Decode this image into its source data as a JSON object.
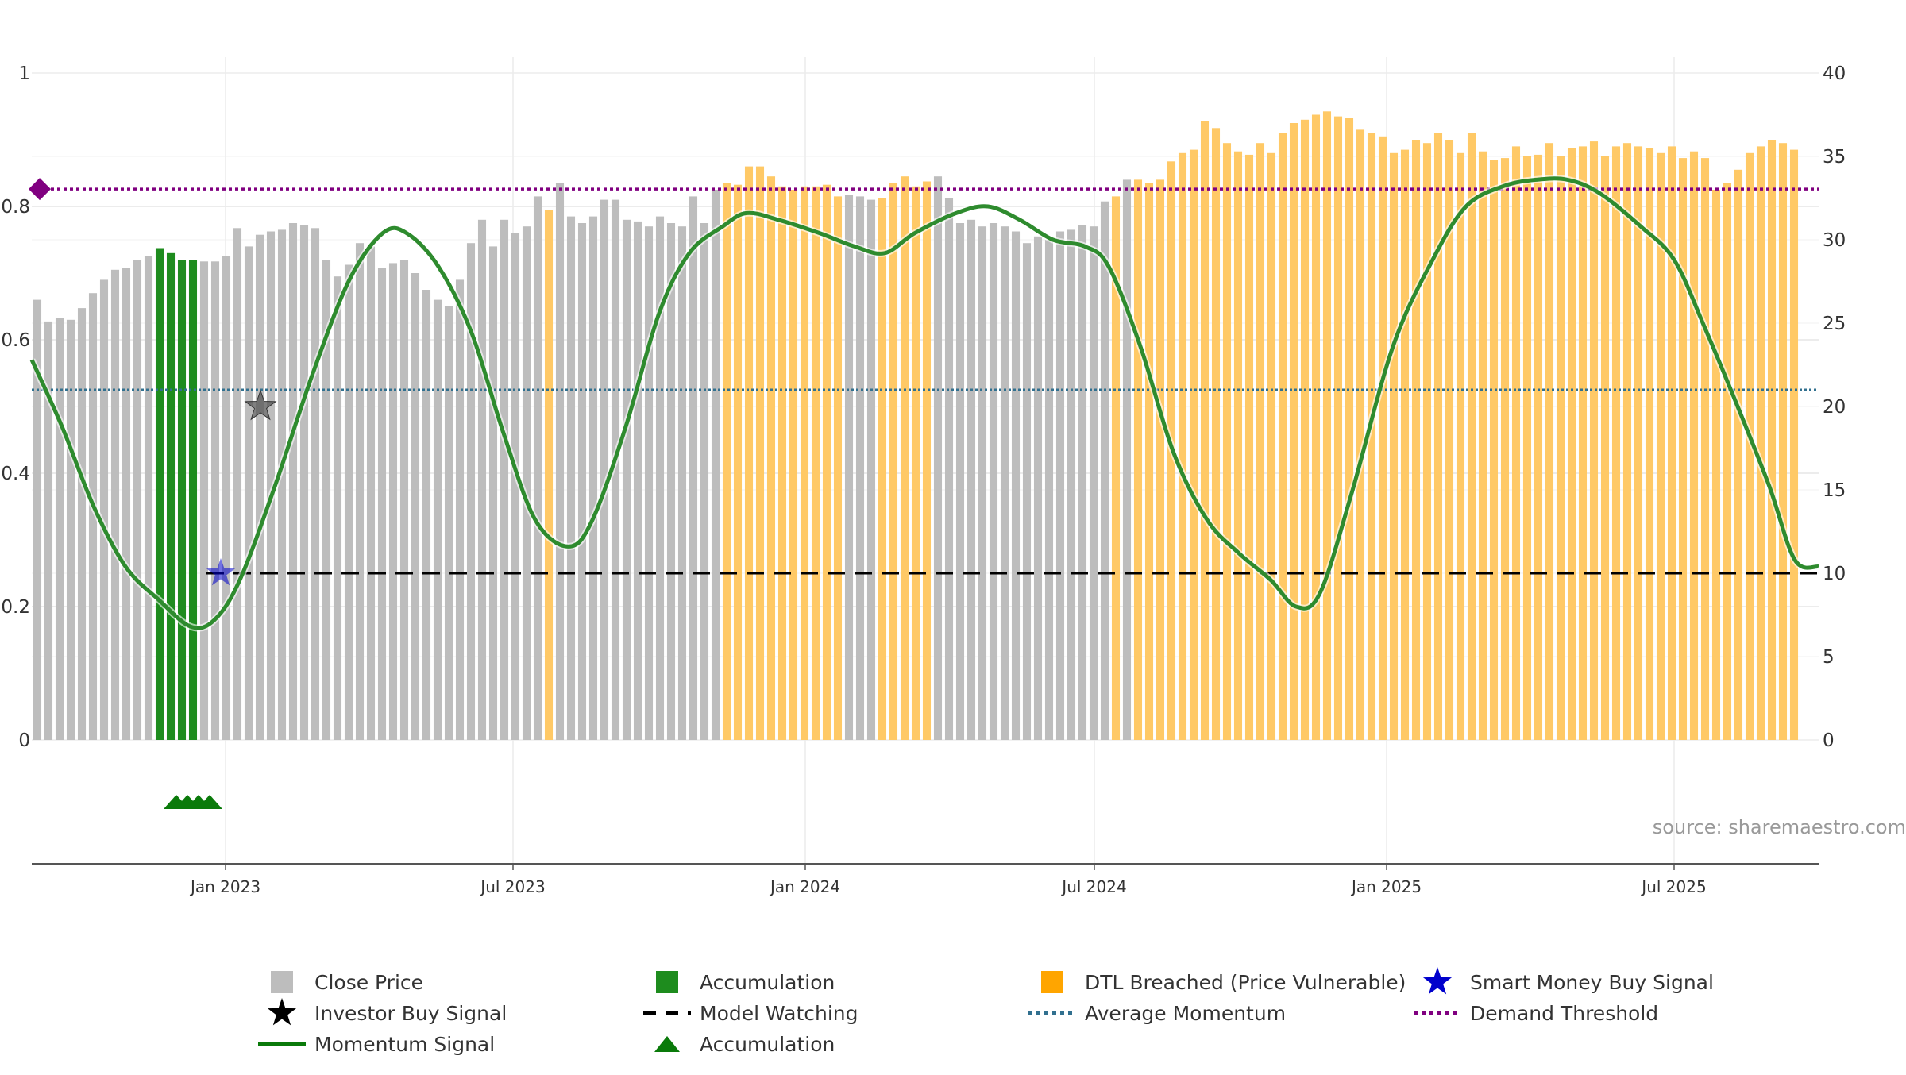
{
  "chart_data": {
    "type": "bar",
    "source_text": "source: sharemaestro.com",
    "x_range": [
      "2022-09-01",
      "2025-09-30"
    ],
    "x_ticks": [
      {
        "date": "2023-01-01",
        "label": "Jan 2023"
      },
      {
        "date": "2023-07-01",
        "label": "Jul 2023"
      },
      {
        "date": "2024-01-01",
        "label": "Jan 2024"
      },
      {
        "date": "2024-07-01",
        "label": "Jul 2024"
      },
      {
        "date": "2025-01-01",
        "label": "Jan 2025"
      },
      {
        "date": "2025-07-01",
        "label": "Jul 2025"
      }
    ],
    "y_left": {
      "range": [
        0,
        1
      ],
      "ticks": [
        0,
        0.2,
        0.4,
        0.6,
        0.8,
        1
      ],
      "labels": [
        "0",
        "0.2",
        "0.4",
        "0.6",
        "0.8",
        "1"
      ]
    },
    "y_right": {
      "range": [
        0,
        40
      ],
      "ticks": [
        0,
        5,
        10,
        15,
        20,
        25,
        30,
        35,
        40
      ],
      "labels": [
        "0",
        "5",
        "10",
        "15",
        "20",
        "25",
        "30",
        "35",
        "40"
      ]
    },
    "grid": true,
    "colors": {
      "close": "#bdbdbd",
      "accumulation": "#1e8c1e",
      "dtl": "#ffc966",
      "momentum": "#2e8b2e",
      "momentum_dtl": "#6b9a1c",
      "model_watching": "#000000",
      "average_momentum": "#31708f",
      "demand_threshold": "#800080",
      "investor_star": "#555555",
      "smart_money_star": "#0000cc",
      "triangle": "#0a7a0a"
    },
    "close_price": {
      "start_date": "2022-09-01",
      "step_days": 7,
      "values": [
        26.4,
        25.1,
        25.3,
        25.2,
        25.9,
        26.8,
        27.6,
        28.2,
        28.3,
        28.8,
        29.0,
        29.5,
        29.2,
        28.8,
        28.8,
        28.7,
        28.7,
        29.0,
        30.7,
        29.6,
        30.3,
        30.5,
        30.6,
        31.0,
        30.9,
        30.7,
        28.8,
        27.8,
        28.5,
        29.8,
        29.6,
        28.3,
        28.6,
        28.8,
        28.0,
        27.0,
        26.4,
        26.0,
        27.6,
        29.8,
        31.2,
        29.6,
        31.2,
        30.4,
        30.8,
        32.6,
        31.8,
        33.4,
        31.4,
        31.0,
        31.4,
        32.4,
        32.4,
        31.2,
        31.1,
        30.8,
        31.4,
        31.0,
        30.8,
        32.6,
        31.0,
        33.0,
        33.4,
        33.3,
        34.4,
        34.4,
        33.8,
        33.2,
        33.0,
        33.2,
        33.2,
        33.3,
        32.6,
        32.7,
        32.6,
        32.4,
        32.5,
        33.4,
        33.8,
        33.2,
        33.5,
        33.8,
        32.5,
        31.0,
        31.2,
        30.8,
        31.0,
        30.8,
        30.5,
        29.8,
        30.2,
        30.0,
        30.5,
        30.6,
        30.9,
        30.8,
        32.3,
        32.6,
        33.6,
        33.6,
        33.4,
        33.6,
        34.7,
        35.2,
        35.4,
        37.1,
        36.7,
        35.8,
        35.3,
        35.1,
        35.8,
        35.2,
        36.4,
        37.0,
        37.2,
        37.5,
        37.7,
        37.4,
        37.3,
        36.6,
        36.4,
        36.2,
        35.2,
        35.4,
        36.0,
        35.8,
        36.4,
        36.0,
        35.2,
        36.4,
        35.3,
        34.8,
        34.9,
        35.6,
        35.0,
        35.1,
        35.8,
        35.0,
        35.5,
        35.6,
        35.9,
        35.0,
        35.6,
        35.8,
        35.6,
        35.5,
        35.2,
        35.6,
        34.9,
        35.3,
        34.9,
        33.0,
        33.4,
        34.2,
        35.2,
        35.6,
        36.0,
        35.8,
        35.4
      ],
      "accumulation_bars": [
        11,
        12,
        13,
        14
      ],
      "dtl_bars": [
        46,
        62,
        63,
        64,
        65,
        66,
        67,
        68,
        69,
        70,
        71,
        72,
        76,
        77,
        78,
        79,
        80,
        97,
        99,
        100,
        101,
        102,
        103,
        104,
        105,
        106,
        107,
        108,
        109,
        110,
        111,
        112,
        113,
        114,
        115,
        116,
        117,
        118,
        119,
        120,
        121,
        122,
        123,
        124,
        125,
        126,
        127,
        128,
        129,
        130,
        131,
        132,
        133,
        134,
        135,
        136,
        137,
        138,
        139,
        140,
        141,
        142,
        143,
        144,
        145,
        146,
        147,
        148,
        149,
        150,
        151,
        152,
        153,
        154,
        155,
        156,
        157,
        158,
        159,
        160,
        161,
        162,
        163,
        164,
        165,
        166,
        167,
        168,
        169,
        170
      ]
    },
    "series": [
      {
        "name": "Momentum Signal",
        "axis": "left",
        "points": [
          [
            "2022-09-01",
            0.57
          ],
          [
            "2022-09-20",
            0.47
          ],
          [
            "2022-10-10",
            0.35
          ],
          [
            "2022-10-30",
            0.26
          ],
          [
            "2022-11-20",
            0.21
          ],
          [
            "2022-12-10",
            0.17
          ],
          [
            "2022-12-25",
            0.18
          ],
          [
            "2023-01-10",
            0.24
          ],
          [
            "2023-02-01",
            0.38
          ],
          [
            "2023-02-25",
            0.55
          ],
          [
            "2023-03-20",
            0.69
          ],
          [
            "2023-04-10",
            0.76
          ],
          [
            "2023-04-25",
            0.76
          ],
          [
            "2023-05-15",
            0.71
          ],
          [
            "2023-06-05",
            0.61
          ],
          [
            "2023-06-25",
            0.46
          ],
          [
            "2023-07-15",
            0.33
          ],
          [
            "2023-08-05",
            0.29
          ],
          [
            "2023-08-20",
            0.33
          ],
          [
            "2023-09-10",
            0.47
          ],
          [
            "2023-10-01",
            0.64
          ],
          [
            "2023-10-20",
            0.73
          ],
          [
            "2023-11-10",
            0.77
          ],
          [
            "2023-11-25",
            0.79
          ],
          [
            "2023-12-15",
            0.78
          ],
          [
            "2024-01-10",
            0.76
          ],
          [
            "2024-02-01",
            0.74
          ],
          [
            "2024-02-20",
            0.73
          ],
          [
            "2024-03-10",
            0.76
          ],
          [
            "2024-04-05",
            0.79
          ],
          [
            "2024-04-25",
            0.8
          ],
          [
            "2024-05-15",
            0.78
          ],
          [
            "2024-06-05",
            0.75
          ],
          [
            "2024-06-25",
            0.74
          ],
          [
            "2024-07-10",
            0.71
          ],
          [
            "2024-07-30",
            0.59
          ],
          [
            "2024-08-20",
            0.43
          ],
          [
            "2024-09-10",
            0.33
          ],
          [
            "2024-09-30",
            0.28
          ],
          [
            "2024-10-20",
            0.24
          ],
          [
            "2024-11-05",
            0.2
          ],
          [
            "2024-11-20",
            0.22
          ],
          [
            "2024-12-10",
            0.37
          ],
          [
            "2025-01-05",
            0.59
          ],
          [
            "2025-01-30",
            0.72
          ],
          [
            "2025-02-20",
            0.8
          ],
          [
            "2025-03-15",
            0.83
          ],
          [
            "2025-04-05",
            0.84
          ],
          [
            "2025-04-25",
            0.84
          ],
          [
            "2025-05-15",
            0.82
          ],
          [
            "2025-06-10",
            0.77
          ],
          [
            "2025-07-01",
            0.72
          ],
          [
            "2025-07-20",
            0.62
          ],
          [
            "2025-08-10",
            0.5
          ],
          [
            "2025-08-30",
            0.38
          ],
          [
            "2025-09-15",
            0.27
          ],
          [
            "2025-09-30",
            0.26
          ]
        ]
      },
      {
        "name": "Average Momentum",
        "axis": "left",
        "value": 0.525
      },
      {
        "name": "Demand Threshold",
        "axis": "left",
        "value": 0.826
      },
      {
        "name": "Model Watching",
        "axis": "left",
        "value": 0.25,
        "from": "2022-12-20"
      }
    ],
    "investor_buy_signals": [
      {
        "date": "2023-01-23",
        "value": 0.5
      }
    ],
    "smart_money_buy_signals": [
      {
        "date": "2022-12-29",
        "value": 0.25
      }
    ],
    "accumulation_markers": [
      {
        "date": "2022-12-01"
      },
      {
        "date": "2022-12-08"
      },
      {
        "date": "2022-12-15"
      },
      {
        "date": "2022-12-22"
      }
    ],
    "legend": [
      {
        "label": "Close Price",
        "symbol": "square",
        "color": "#bdbdbd"
      },
      {
        "label": "Accumulation",
        "symbol": "square",
        "color": "#1e8c1e"
      },
      {
        "label": "DTL Breached (Price Vulnerable)",
        "symbol": "square",
        "color": "#ffa500"
      },
      {
        "label": "Smart Money Buy Signal",
        "symbol": "star",
        "color": "#0000cc"
      },
      {
        "label": "Investor Buy Signal",
        "symbol": "star",
        "color": "#000000"
      },
      {
        "label": "Model Watching",
        "symbol": "dash",
        "color": "#000000"
      },
      {
        "label": "Average Momentum",
        "symbol": "dot",
        "color": "#31708f"
      },
      {
        "label": "Demand Threshold",
        "symbol": "dot",
        "color": "#800080"
      },
      {
        "label": "Momentum Signal",
        "symbol": "line",
        "color": "#0a7a0a"
      },
      {
        "label": "Accumulation",
        "symbol": "triangle",
        "color": "#0a7a0a"
      }
    ]
  }
}
